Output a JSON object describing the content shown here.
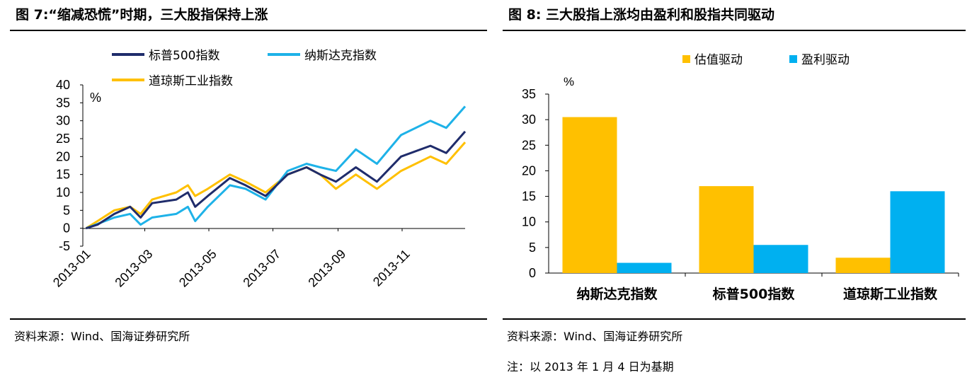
{
  "left_panel": {
    "title": "图 7:“缩减恐慌”时期，三大股指保持上涨",
    "source": "资料来源：Wind、国海证券研究所"
  },
  "right_panel": {
    "title": "图 8: 三大股指上涨均由盈利和股指共同驱动",
    "source": "资料来源：Wind、国海证券研究所",
    "note": "注：以 2013 年 1 月 4 日为基期"
  },
  "colors": {
    "sp500": "#1F2C6B",
    "nasdaq": "#1EB2E8",
    "dow": "#FFC000",
    "valuation": "#FFC000",
    "earnings": "#00B0F0"
  },
  "chart_data": [
    {
      "type": "line",
      "unit_label": "%",
      "ylim": [
        -5,
        40
      ],
      "yticks": [
        "40",
        "35",
        "30",
        "25",
        "20",
        "15",
        "10",
        "5",
        "0",
        "-5"
      ],
      "xlim": [
        "2013-01-01",
        "2013-12-31"
      ],
      "xticks": [
        "2013-01",
        "2013-03",
        "2013-05",
        "2013-07",
        "2013-09",
        "2013-11"
      ],
      "legend_position": "top",
      "series": [
        {
          "name": "标普500指数",
          "color": "#1F2C6B",
          "points": [
            [
              "2013-01-04",
              0
            ],
            [
              "2013-01-15",
              1
            ],
            [
              "2013-01-31",
              4
            ],
            [
              "2013-02-15",
              6
            ],
            [
              "2013-02-25",
              3
            ],
            [
              "2013-03-08",
              7
            ],
            [
              "2013-03-31",
              8
            ],
            [
              "2013-04-11",
              10
            ],
            [
              "2013-04-18",
              6
            ],
            [
              "2013-04-30",
              9
            ],
            [
              "2013-05-21",
              14
            ],
            [
              "2013-06-05",
              12
            ],
            [
              "2013-06-24",
              9
            ],
            [
              "2013-07-15",
              15
            ],
            [
              "2013-08-02",
              17
            ],
            [
              "2013-08-15",
              15
            ],
            [
              "2013-08-30",
              13
            ],
            [
              "2013-09-18",
              17
            ],
            [
              "2013-10-08",
              13
            ],
            [
              "2013-10-31",
              20
            ],
            [
              "2013-11-28",
              23
            ],
            [
              "2013-12-13",
              21
            ],
            [
              "2013-12-31",
              27
            ]
          ]
        },
        {
          "name": "纳斯达克指数",
          "color": "#1EB2E8",
          "points": [
            [
              "2013-01-04",
              0
            ],
            [
              "2013-01-31",
              3
            ],
            [
              "2013-02-15",
              4
            ],
            [
              "2013-02-25",
              1
            ],
            [
              "2013-03-08",
              3
            ],
            [
              "2013-03-31",
              4
            ],
            [
              "2013-04-11",
              6
            ],
            [
              "2013-04-18",
              2
            ],
            [
              "2013-04-30",
              6
            ],
            [
              "2013-05-21",
              12
            ],
            [
              "2013-06-05",
              11
            ],
            [
              "2013-06-24",
              8
            ],
            [
              "2013-07-15",
              16
            ],
            [
              "2013-08-02",
              18
            ],
            [
              "2013-08-15",
              17
            ],
            [
              "2013-08-30",
              16
            ],
            [
              "2013-09-18",
              22
            ],
            [
              "2013-10-08",
              18
            ],
            [
              "2013-10-31",
              26
            ],
            [
              "2013-11-28",
              30
            ],
            [
              "2013-12-13",
              28
            ],
            [
              "2013-12-31",
              34
            ]
          ]
        },
        {
          "name": "道琼斯工业指数",
          "color": "#FFC000",
          "points": [
            [
              "2013-01-04",
              0
            ],
            [
              "2013-01-15",
              2
            ],
            [
              "2013-01-31",
              5
            ],
            [
              "2013-02-15",
              6
            ],
            [
              "2013-02-25",
              4
            ],
            [
              "2013-03-08",
              8
            ],
            [
              "2013-03-31",
              10
            ],
            [
              "2013-04-11",
              12
            ],
            [
              "2013-04-18",
              9
            ],
            [
              "2013-04-30",
              11
            ],
            [
              "2013-05-21",
              15
            ],
            [
              "2013-06-05",
              13
            ],
            [
              "2013-06-24",
              10
            ],
            [
              "2013-07-15",
              15
            ],
            [
              "2013-08-02",
              17
            ],
            [
              "2013-08-15",
              15
            ],
            [
              "2013-08-30",
              11
            ],
            [
              "2013-09-18",
              15
            ],
            [
              "2013-10-08",
              11
            ],
            [
              "2013-10-31",
              16
            ],
            [
              "2013-11-28",
              20
            ],
            [
              "2013-12-13",
              18
            ],
            [
              "2013-12-31",
              24
            ]
          ]
        }
      ]
    },
    {
      "type": "bar",
      "unit_label": "%",
      "categories": [
        "纳斯达克指数",
        "标普500指数",
        "道琼斯工业指数"
      ],
      "ylim": [
        0,
        35
      ],
      "yticks": [
        "35",
        "30",
        "25",
        "20",
        "15",
        "10",
        "5",
        "0"
      ],
      "legend_position": "top",
      "series": [
        {
          "name": "估值驱动",
          "color": "#FFC000",
          "values": [
            30.5,
            17,
            3
          ]
        },
        {
          "name": "盈利驱动",
          "color": "#00B0F0",
          "values": [
            2,
            5.5,
            16
          ]
        }
      ]
    }
  ]
}
